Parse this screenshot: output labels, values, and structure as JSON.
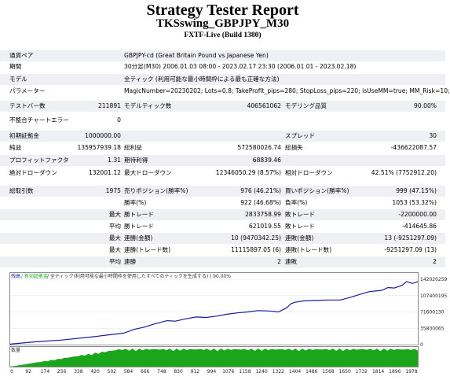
{
  "header": {
    "title": "Strategy Tester Report",
    "subtitle": "TKSswing_GBPJPY_M30",
    "build": "FXTF-Live (Build 1380)"
  },
  "settings": {
    "symbol": {
      "label": "通貨ペア",
      "value": "GBPJPY-cd (Great Britain Pound vs Japanese Yen)"
    },
    "period": {
      "label": "期間",
      "value": "30分足(M30) 2006.01.03 08:00 - 2023.02.17 23:30 (2006.01.01 - 2023.02.18)"
    },
    "model": {
      "label": "モデル",
      "value": "全ティック (利用可能な最小時間枠による最も正確な方法)"
    },
    "params": {
      "label": "パラメーター",
      "value": "MagicNumber=20230202; Lots=0.8; TakeProfit_pips=280; StopLoss_pips=220; isUseMM=true; MM_Risk=10;"
    }
  },
  "summary": {
    "bars_label": "テストバー数",
    "bars": "211891",
    "ticks_label": "モデルティック数",
    "ticks": "406561062",
    "quality_label": "モデリング品質",
    "quality": "90.00%",
    "errors_label": "不整合チャートエラー",
    "errors": "0"
  },
  "results": {
    "deposit_label": "初期証拠金",
    "deposit": "1000000.00",
    "spread_label": "スプレッド",
    "spread": "30",
    "net_label": "純益",
    "net": "135957939.18",
    "gross_profit_label": "総利益",
    "gross_profit": "572580026.74",
    "gross_loss_label": "総損失",
    "gross_loss": "-436622087.57",
    "pf_label": "プロフィットファクタ",
    "pf": "1.31",
    "payoff_label": "期待利得",
    "payoff": "68839.46",
    "abs_dd_label": "絶対ドローダウン",
    "abs_dd": "132001.12",
    "max_dd_label": "最大ドローダウン",
    "max_dd": "12346050.29 (8.57%)",
    "rel_dd_label": "相対ドローダウン",
    "rel_dd": "42.51% (7752912.20)"
  },
  "trades": {
    "total_label": "総取引数",
    "total": "1975",
    "short_label": "売りポジション(勝率%)",
    "short": "976 (46.21%)",
    "long_label": "買いポジション(勝率%)",
    "long": "999 (47.15%)",
    "win_pct_label": "勝率(%)",
    "win_pct": "922 (46.68%)",
    "loss_pct_label": "負率(%)",
    "loss_pct": "1053 (53.32%)",
    "max_label": "最大",
    "largest_win_label": "勝トレード",
    "largest_win": "2833758.99",
    "largest_loss_label": "敗トレード",
    "largest_loss": "-2200000.00",
    "avg_label": "平均",
    "avg_win_label": "勝トレード",
    "avg_win": "621019.55",
    "avg_loss_label": "敗トレード",
    "avg_loss": "-414645.86",
    "max2_label": "最大",
    "consec_wins_amt_label": "連勝(金額)",
    "consec_wins_amt": "10 (9470342.25)",
    "consec_losses_amt_label": "連敗(金額)",
    "consec_losses_amt": "13 (-9251297.09)",
    "max3_label": "最大",
    "consec_profit_label": "連勝(トレード数)",
    "consec_profit": "11115897.05 (6)",
    "consec_loss_label": "連敗(トレード数)",
    "consec_loss": "-9251297.09 (13)",
    "avg2_label": "平均",
    "avg_consec_wins_label": "連勝",
    "avg_consec_wins": "2",
    "avg_consec_losses_label": "連敗",
    "avg_consec_losses": "2"
  },
  "graph": {
    "legend_balance": "残高",
    "legend_equity": "/ 有効証拠金",
    "legend_rest": "/ 全ティック(利用可能な最小時間枠を使用したすべてのティックを生成する) / 90.00%",
    "colors": {
      "balance": "#1a1a9c",
      "volume": "#1aa51a",
      "border": "#888888"
    },
    "y_ticks": [
      "142020259",
      "107400195",
      "71600130",
      "35800065",
      "0"
    ],
    "volume_label": "数量",
    "x_ticks": [
      "0",
      "92",
      "174",
      "256",
      "338",
      "420",
      "502",
      "584",
      "666",
      "748",
      "830",
      "912",
      "994",
      "1076",
      "1158",
      "1240",
      "1322",
      "1404",
      "1486",
      "1568",
      "1650",
      "1732",
      "1814",
      "1896",
      "1978"
    ]
  },
  "chart_data": {
    "type": "line",
    "title": "",
    "xlabel": "",
    "ylabel": "",
    "ylim": [
      0,
      142020259
    ],
    "xlim": [
      0,
      1975
    ],
    "series": [
      {
        "name": "残高",
        "x": [
          0,
          120,
          250,
          400,
          550,
          600,
          650,
          700,
          760,
          800,
          850,
          900,
          950,
          1000,
          1050,
          1100,
          1150,
          1200,
          1260,
          1300,
          1340,
          1360,
          1380,
          1420,
          1480,
          1540,
          1600,
          1650,
          1700,
          1740,
          1800,
          1830,
          1860,
          1880,
          1900,
          1920,
          1950,
          1975
        ],
        "values": [
          1000000,
          6000000,
          10000000,
          17000000,
          25000000,
          33000000,
          38000000,
          45000000,
          52000000,
          51000000,
          56000000,
          60000000,
          59000000,
          62000000,
          66000000,
          69000000,
          71000000,
          74000000,
          73000000,
          71000000,
          80000000,
          89000000,
          92000000,
          95000000,
          96000000,
          97000000,
          97000000,
          103000000,
          110000000,
          115000000,
          118000000,
          124000000,
          123000000,
          126000000,
          129000000,
          137000000,
          133000000,
          137000000
        ]
      }
    ]
  }
}
